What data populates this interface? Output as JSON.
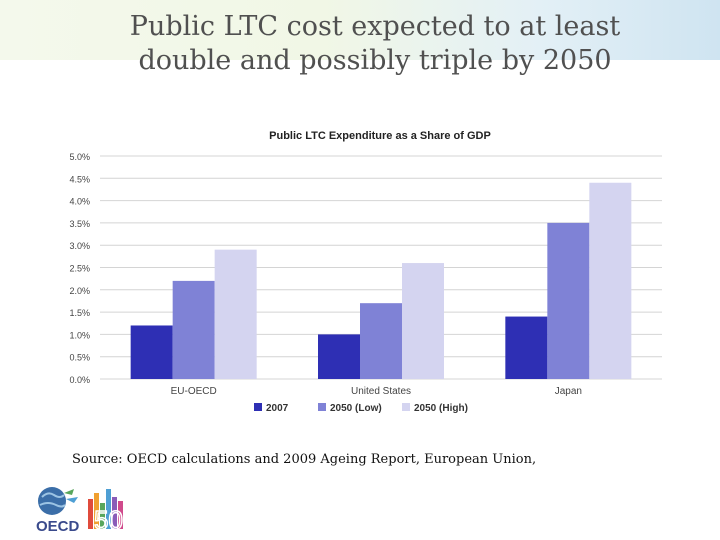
{
  "slide": {
    "title_line1": "Public LTC cost expected to at least",
    "title_line2": "double and possibly triple by 2050",
    "source": "Source: OECD calculations and 2009 Ageing Report, European Union,"
  },
  "logo": {
    "org_text": "OECD",
    "anniversary_text": "50",
    "icon": "oecd-globe-icon"
  },
  "colors": {
    "series_2007": "#2e2fb4",
    "series_2050_low": "#7f82d6",
    "series_2050_high": "#d4d4f0",
    "grid": "#d4d4d4"
  },
  "chart_data": {
    "type": "bar",
    "title": "Public LTC Expenditure as a Share of GDP",
    "xlabel": "",
    "ylabel": "",
    "ylim": [
      0,
      5
    ],
    "yticks": [
      0,
      0.5,
      1,
      1.5,
      2,
      2.5,
      3,
      3.5,
      4,
      4.5,
      5
    ],
    "ytick_labels": [
      "0.0%",
      "0.5%",
      "1.0%",
      "1.5%",
      "2.0%",
      "2.5%",
      "3.0%",
      "3.5%",
      "4.0%",
      "4.5%",
      "5.0%"
    ],
    "categories": [
      "EU-OECD",
      "United States",
      "Japan"
    ],
    "series": [
      {
        "name": "2007",
        "values": [
          1.2,
          1.0,
          1.4
        ]
      },
      {
        "name": "2050 (Low)",
        "values": [
          2.2,
          1.7,
          3.5
        ]
      },
      {
        "name": "2050 (High)",
        "values": [
          2.9,
          2.6,
          4.4
        ]
      }
    ],
    "legend_position": "bottom-center",
    "grid": true
  }
}
